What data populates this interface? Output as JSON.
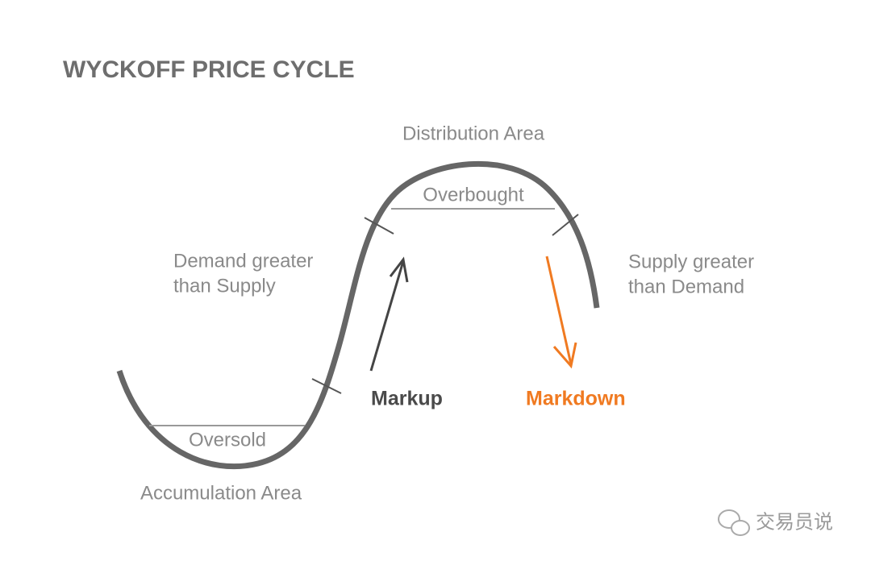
{
  "title": "WYCKOFF PRICE CYCLE",
  "labels": {
    "distribution": "Distribution Area",
    "overbought": "Overbought",
    "demand": [
      "Demand greater",
      "than Supply"
    ],
    "supply": [
      "Supply greater",
      "than Demand"
    ],
    "markup": "Markup",
    "markdown": "Markdown",
    "oversold": "Oversold",
    "accumulation": "Accumulation Area"
  },
  "watermark": "交易员说"
}
